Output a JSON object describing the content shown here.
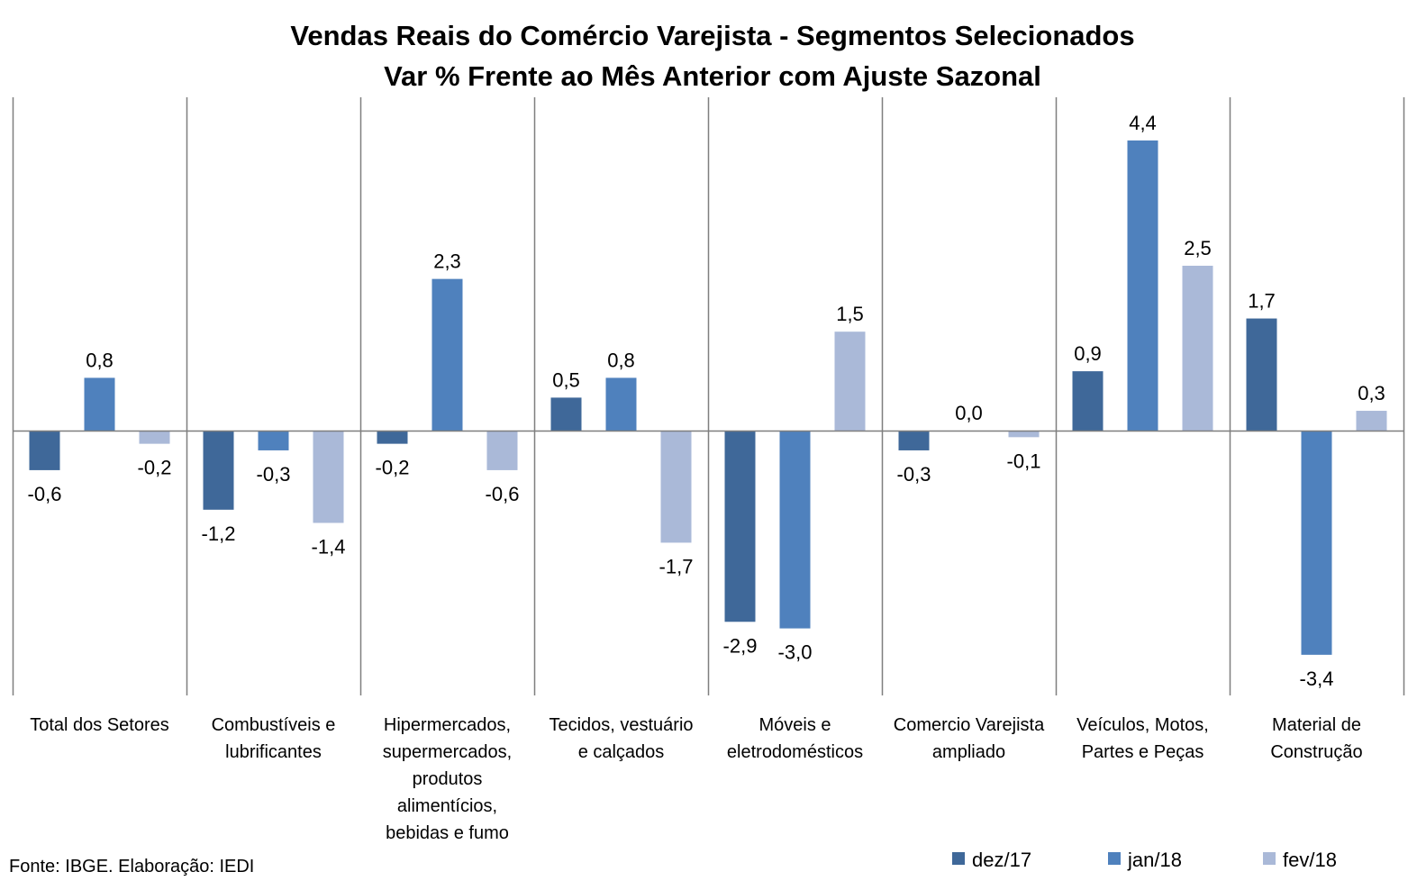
{
  "chart_data": {
    "type": "bar",
    "title": "Vendas Reais do Comércio Varejista - Segmentos Selecionados",
    "subtitle": "Var % Frente ao Mês Anterior com Ajuste Sazonal",
    "categories": [
      [
        "Total dos Setores"
      ],
      [
        "Combustíveis e",
        "lubrificantes"
      ],
      [
        "Hipermercados,",
        "supermercados,",
        "produtos",
        "alimentícios,",
        "bebidas e fumo"
      ],
      [
        "Tecidos, vestuário",
        "e calçados"
      ],
      [
        "Móveis e",
        "eletrodomésticos"
      ],
      [
        "Comercio Varejista",
        "ampliado"
      ],
      [
        "Veículos, Motos,",
        "Partes e Peças"
      ],
      [
        "Material de",
        "Construção"
      ]
    ],
    "series": [
      {
        "name": "dez/17",
        "color": "#3f6899",
        "values": [
          -0.6,
          -1.2,
          -0.2,
          0.5,
          -2.9,
          -0.3,
          0.9,
          1.7
        ],
        "labels": [
          "-0,6",
          "-1,2",
          "-0,2",
          "0,5",
          "-2,9",
          "-0,3",
          "0,9",
          "1,7"
        ]
      },
      {
        "name": "jan/18",
        "color": "#4f81bd",
        "values": [
          0.8,
          -0.3,
          2.3,
          0.8,
          -3.0,
          0.0,
          4.4,
          -3.4
        ],
        "labels": [
          "0,8",
          "-0,3",
          "2,3",
          "0,8",
          "-3,0",
          "0,0",
          "4,4",
          "-3,4"
        ]
      },
      {
        "name": "fev/18",
        "color": "#aab9d8",
        "values": [
          -0.2,
          -1.4,
          -0.6,
          -1.7,
          1.5,
          -0.1,
          2.5,
          0.3
        ],
        "labels": [
          "-0,2",
          "-1,4",
          "-0,6",
          "-1,7",
          "1,5",
          "-0,1",
          "2,5",
          "0,3"
        ]
      }
    ],
    "ylim": [
      -4.0,
      5.0
    ],
    "grid": false,
    "legend": "bottom-right",
    "source": "Fonte: IBGE. Elaboração: IEDI"
  }
}
